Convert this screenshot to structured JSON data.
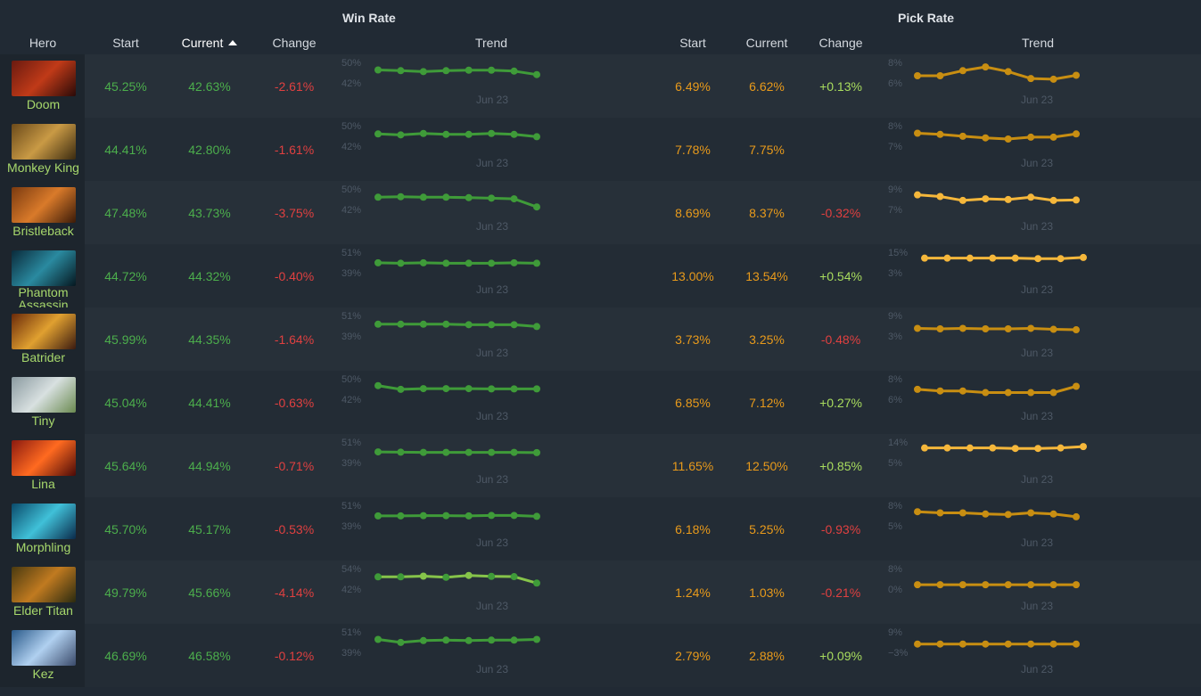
{
  "header": {
    "win_rate_title": "Win Rate",
    "pick_rate_title": "Pick Rate",
    "columns": {
      "hero": "Hero",
      "wr_start": "Start",
      "wr_current": "Current",
      "wr_change": "Change",
      "wr_trend": "Trend",
      "pr_start": "Start",
      "pr_current": "Current",
      "pr_change": "Change",
      "pr_trend": "Trend"
    }
  },
  "colors": {
    "win_line": "#3f9b39",
    "win_line_light": "#86c44a",
    "pick_line": "#c88e12",
    "pick_line_bright": "#f5b73b",
    "positive": "#a9dd5e",
    "negative": "#e04040"
  },
  "trend_date": "Jun 23",
  "rows": [
    {
      "hero": "Doom",
      "wr_start": "45.25%",
      "wr_current": "42.63%",
      "wr_change": "-2.61%",
      "wr_max": "50%",
      "wr_min": "42%",
      "wr_series": [
        0.75,
        0.72,
        0.68,
        0.72,
        0.74,
        0.74,
        0.7,
        0.55
      ],
      "pr_start": "6.49%",
      "pr_current": "6.62%",
      "pr_change": "+0.13%",
      "pr_change_sign": "pos",
      "pr_max": "8%",
      "pr_min": "6%",
      "pr_series": [
        0.5,
        0.5,
        0.72,
        0.88,
        0.68,
        0.38,
        0.35,
        0.52
      ],
      "pr_bright": false
    },
    {
      "hero": "Monkey King",
      "wr_start": "44.41%",
      "wr_current": "42.80%",
      "wr_change": "-1.61%",
      "wr_max": "50%",
      "wr_min": "42%",
      "wr_series": [
        0.72,
        0.68,
        0.74,
        0.7,
        0.7,
        0.74,
        0.7,
        0.6
      ],
      "pr_start": "7.78%",
      "pr_current": "7.75%",
      "pr_change": "",
      "pr_change_sign": "none",
      "pr_max": "8%",
      "pr_min": "7%",
      "pr_series": [
        0.75,
        0.7,
        0.62,
        0.55,
        0.5,
        0.58,
        0.58,
        0.72
      ],
      "pr_bright": false
    },
    {
      "hero": "Bristleback",
      "wr_start": "47.48%",
      "wr_current": "43.73%",
      "wr_change": "-3.75%",
      "wr_max": "50%",
      "wr_min": "42%",
      "wr_series": [
        0.72,
        0.74,
        0.72,
        0.72,
        0.7,
        0.68,
        0.65,
        0.3
      ],
      "pr_start": "8.69%",
      "pr_current": "8.37%",
      "pr_change": "-0.32%",
      "pr_change_sign": "neg",
      "pr_max": "9%",
      "pr_min": "7%",
      "pr_series": [
        0.82,
        0.75,
        0.58,
        0.65,
        0.62,
        0.72,
        0.58,
        0.6
      ],
      "pr_bright": true
    },
    {
      "hero": "Phantom Assassin",
      "wr_start": "44.72%",
      "wr_current": "44.32%",
      "wr_change": "-0.40%",
      "wr_max": "51%",
      "wr_min": "39%",
      "wr_series": [
        0.62,
        0.6,
        0.62,
        0.6,
        0.6,
        0.6,
        0.62,
        0.6
      ],
      "pr_start": "13.00%",
      "pr_current": "13.54%",
      "pr_change": "+0.54%",
      "pr_change_sign": "pos",
      "pr_max": "15%",
      "pr_min": "3%",
      "pr_series": [
        0.82,
        0.82,
        0.82,
        0.82,
        0.82,
        0.8,
        0.8,
        0.85
      ],
      "pr_bright": true
    },
    {
      "hero": "Batrider",
      "wr_start": "45.99%",
      "wr_current": "44.35%",
      "wr_change": "-1.64%",
      "wr_max": "51%",
      "wr_min": "39%",
      "wr_series": [
        0.7,
        0.7,
        0.7,
        0.7,
        0.68,
        0.68,
        0.68,
        0.6
      ],
      "pr_start": "3.73%",
      "pr_current": "3.25%",
      "pr_change": "-0.48%",
      "pr_change_sign": "neg",
      "pr_max": "9%",
      "pr_min": "3%",
      "pr_series": [
        0.52,
        0.5,
        0.52,
        0.5,
        0.5,
        0.52,
        0.48,
        0.46
      ],
      "pr_bright": false
    },
    {
      "hero": "Tiny",
      "wr_start": "45.04%",
      "wr_current": "44.41%",
      "wr_change": "-0.63%",
      "wr_max": "50%",
      "wr_min": "42%",
      "wr_series": [
        0.78,
        0.62,
        0.65,
        0.65,
        0.65,
        0.64,
        0.64,
        0.64
      ],
      "pr_start": "6.85%",
      "pr_current": "7.12%",
      "pr_change": "+0.27%",
      "pr_change_sign": "pos",
      "pr_max": "8%",
      "pr_min": "6%",
      "pr_series": [
        0.62,
        0.55,
        0.55,
        0.48,
        0.48,
        0.48,
        0.48,
        0.75
      ],
      "pr_bright": false
    },
    {
      "hero": "Lina",
      "wr_start": "45.64%",
      "wr_current": "44.94%",
      "wr_change": "-0.71%",
      "wr_max": "51%",
      "wr_min": "39%",
      "wr_series": [
        0.65,
        0.64,
        0.63,
        0.63,
        0.63,
        0.63,
        0.63,
        0.62
      ],
      "pr_start": "11.65%",
      "pr_current": "12.50%",
      "pr_change": "+0.85%",
      "pr_change_sign": "pos",
      "pr_max": "14%",
      "pr_min": "5%",
      "pr_series": [
        0.82,
        0.82,
        0.82,
        0.82,
        0.8,
        0.8,
        0.82,
        0.88
      ],
      "pr_bright": true
    },
    {
      "hero": "Morphling",
      "wr_start": "45.70%",
      "wr_current": "45.17%",
      "wr_change": "-0.53%",
      "wr_max": "51%",
      "wr_min": "39%",
      "wr_series": [
        0.62,
        0.62,
        0.63,
        0.63,
        0.62,
        0.64,
        0.64,
        0.6
      ],
      "pr_start": "6.18%",
      "pr_current": "5.25%",
      "pr_change": "-0.93%",
      "pr_change_sign": "neg",
      "pr_max": "8%",
      "pr_min": "5%",
      "pr_series": [
        0.8,
        0.75,
        0.75,
        0.7,
        0.68,
        0.75,
        0.7,
        0.58
      ],
      "pr_bright": false
    },
    {
      "hero": "Elder Titan",
      "wr_start": "49.79%",
      "wr_current": "45.66%",
      "wr_change": "-4.14%",
      "wr_max": "54%",
      "wr_min": "42%",
      "wr_series": [
        0.72,
        0.72,
        0.75,
        0.7,
        0.78,
        0.74,
        0.73,
        0.45
      ],
      "pr_start": "1.24%",
      "pr_current": "1.03%",
      "pr_change": "-0.21%",
      "pr_change_sign": "neg",
      "pr_max": "8%",
      "pr_min": "0%",
      "pr_series": [
        0.38,
        0.38,
        0.38,
        0.38,
        0.38,
        0.38,
        0.38,
        0.38
      ],
      "pr_bright": false
    },
    {
      "hero": "Kez",
      "wr_start": "46.69%",
      "wr_current": "46.58%",
      "wr_change": "-0.12%",
      "wr_max": "51%",
      "wr_min": "39%",
      "wr_series": [
        0.75,
        0.62,
        0.7,
        0.72,
        0.7,
        0.72,
        0.72,
        0.75
      ],
      "pr_start": "2.79%",
      "pr_current": "2.88%",
      "pr_change": "+0.09%",
      "pr_change_sign": "pos",
      "pr_max": "9%",
      "pr_min": "−3%",
      "pr_series": [
        0.55,
        0.55,
        0.55,
        0.55,
        0.55,
        0.55,
        0.55,
        0.55
      ],
      "pr_bright": false
    }
  ]
}
